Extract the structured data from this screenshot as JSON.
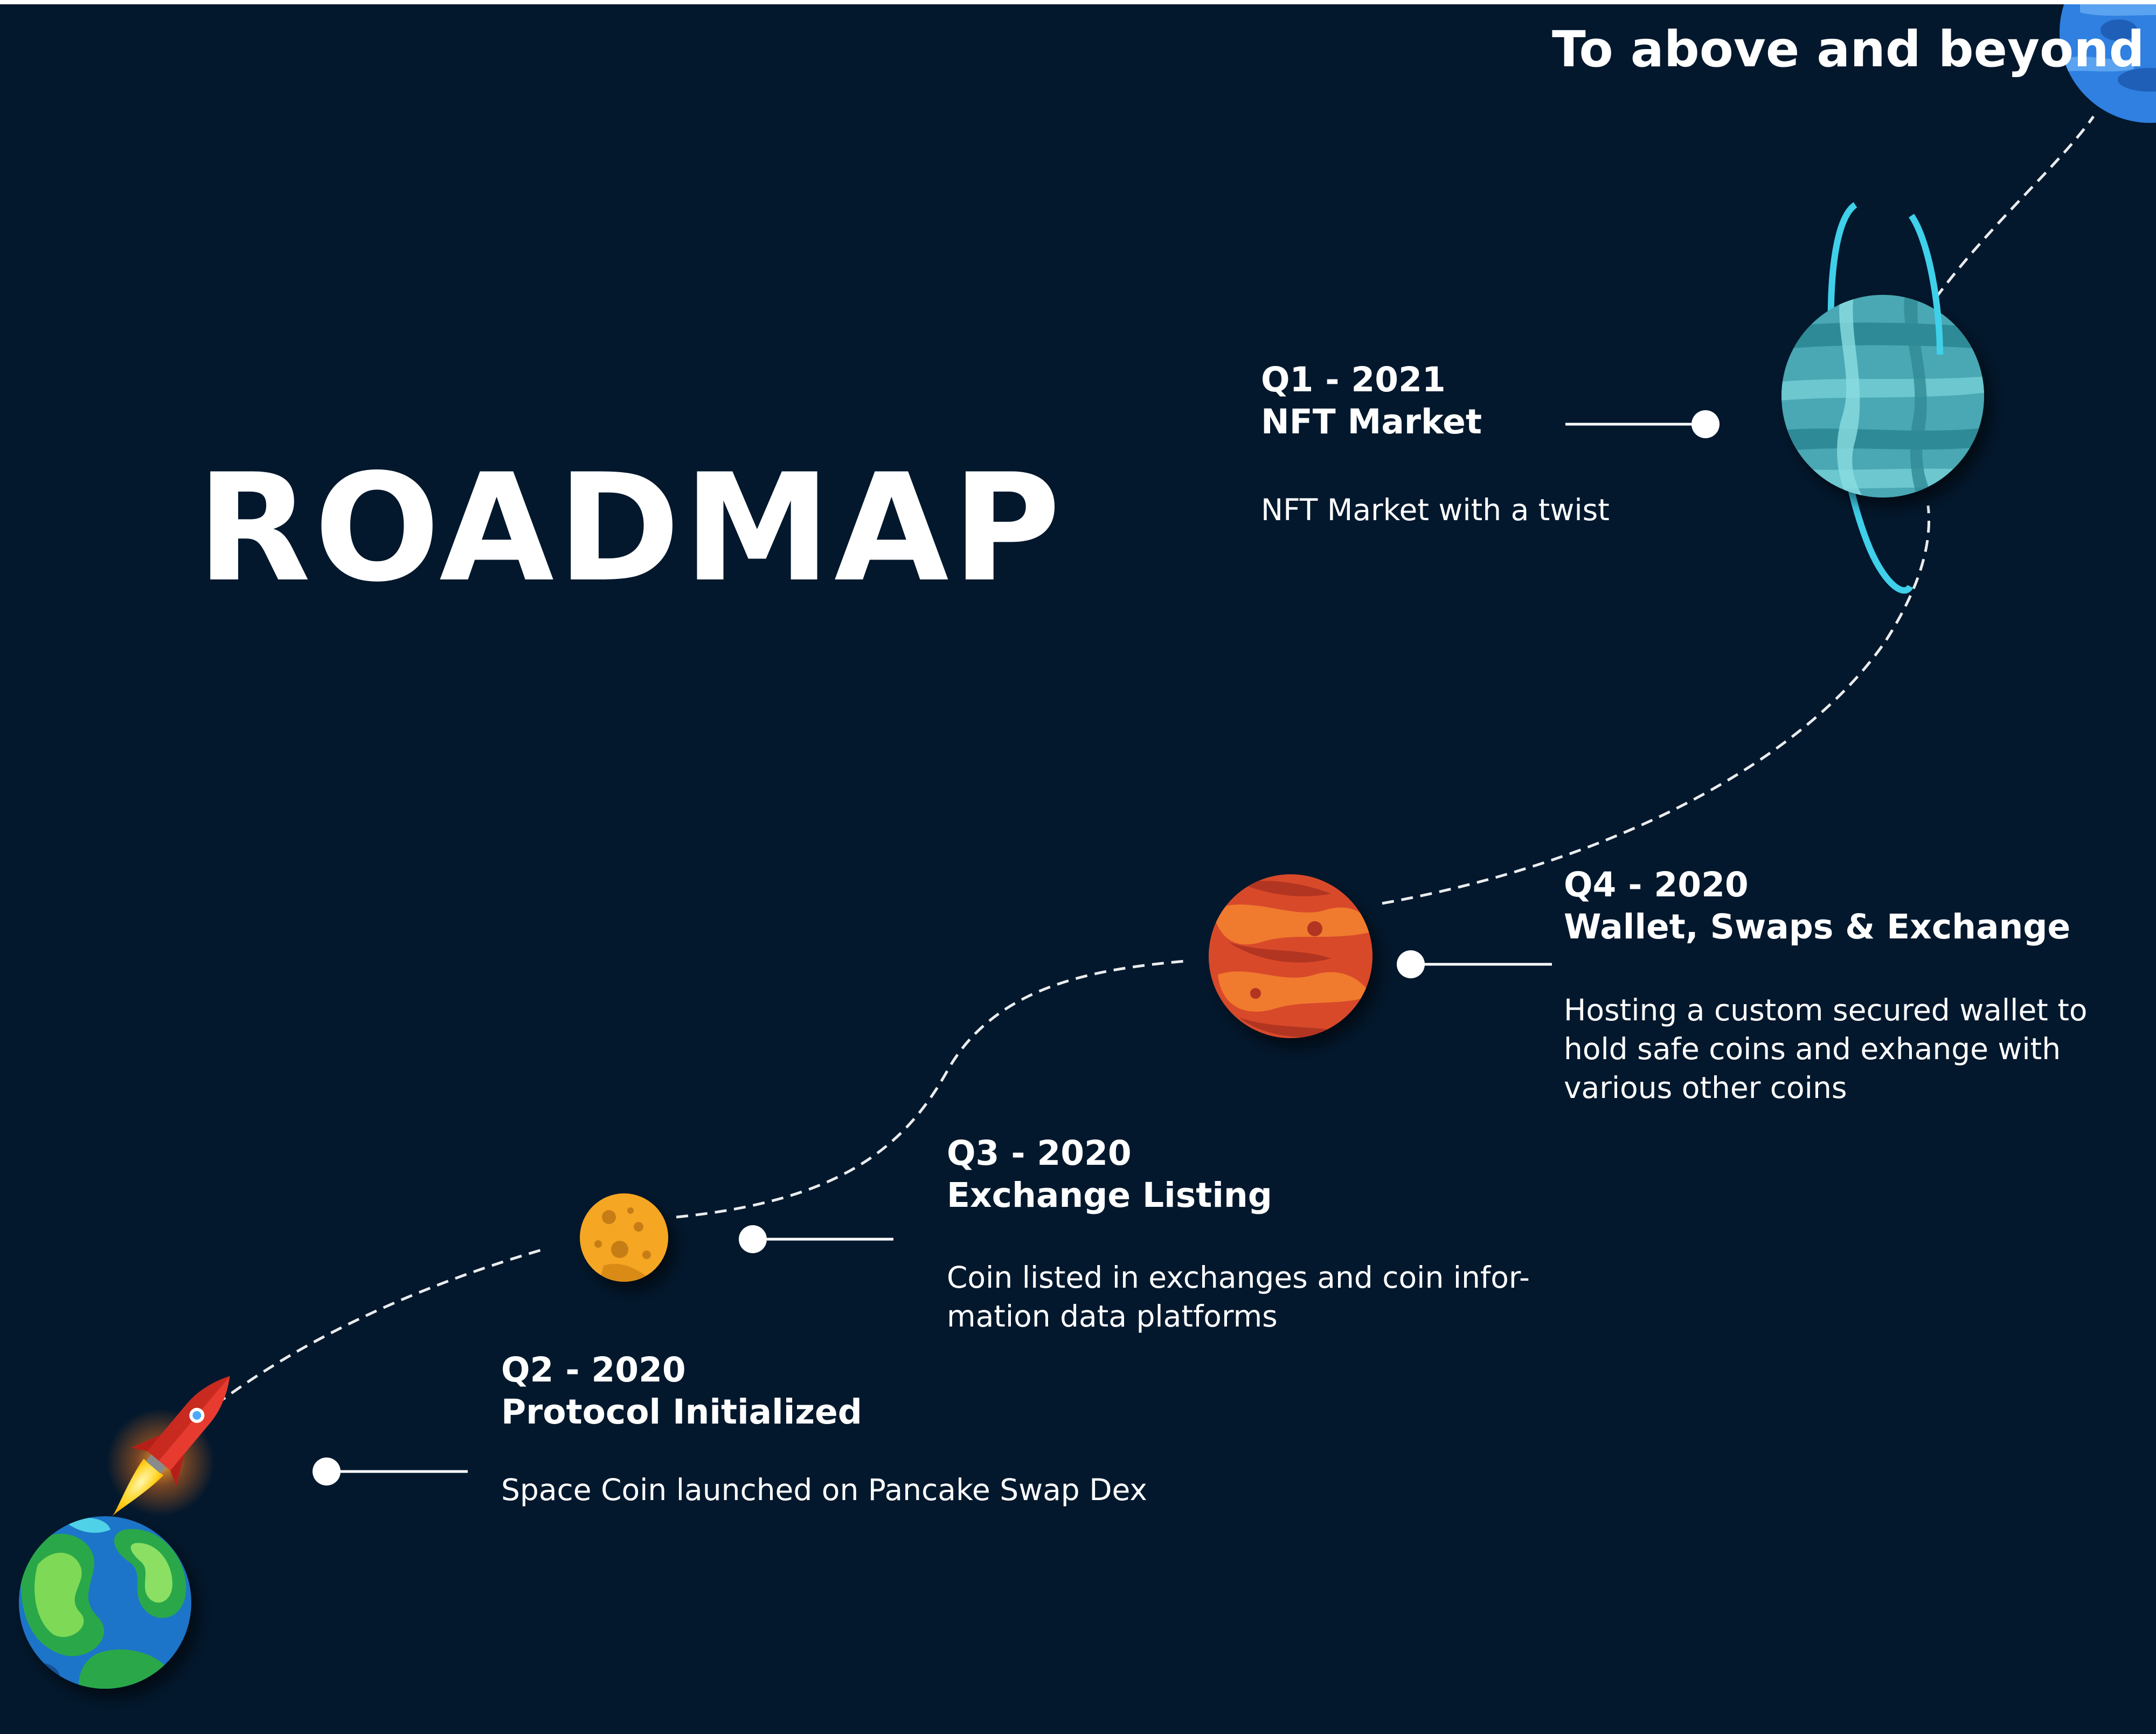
{
  "title": "ROADMAP",
  "tagline": "To above and beyond",
  "colors": {
    "background": "#03182d",
    "text": "#ffffff",
    "path": "#ffffff"
  },
  "milestones": [
    {
      "quarter": "Q1 - 2021",
      "heading": "NFT Market",
      "description": "NFT Market with a twist",
      "planet": "ringed-teal-planet-icon"
    },
    {
      "quarter": "Q4 - 2020",
      "heading": "Wallet, Swaps & Exchange",
      "description": "Hosting a custom secured wallet to hold safe coins and exhange with various other coins",
      "planet": "red-planet-icon"
    },
    {
      "quarter": "Q3 - 2020",
      "heading": "Exchange Listing",
      "description": "Coin listed in exchanges and coin infor-mation data platforms",
      "planet": "yellow-moon-icon"
    },
    {
      "quarter": "Q2 - 2020",
      "heading": "Protocol Initialized",
      "description": "Space Coin launched on Pancake Swap Dex",
      "planet": "earth-icon"
    }
  ],
  "decorations": [
    "rocket-icon",
    "blue-planet-icon"
  ]
}
